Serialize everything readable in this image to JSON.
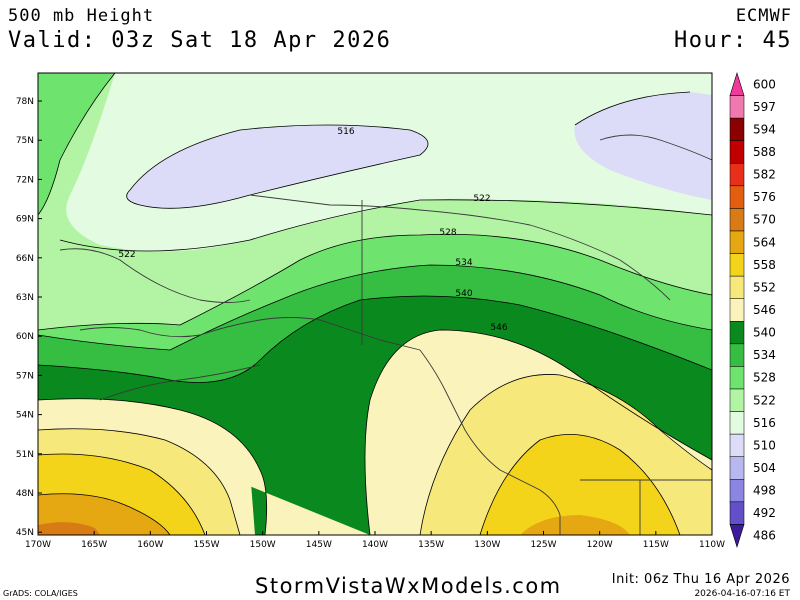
{
  "header": {
    "title": "500 mb Height",
    "valid": "Valid: 03z Sat 18 Apr 2026",
    "model": "ECMWF",
    "hour": "Hour: 45"
  },
  "footer": {
    "brand": "StormVistaWxModels.com",
    "credit": "GrADS: COLA/IGES",
    "init": "Init: 06z Thu 16 Apr 2026",
    "stamp": "2026-04-16-07:16 ET"
  },
  "map": {
    "lat_labels": [
      "78N",
      "75N",
      "72N",
      "69N",
      "66N",
      "63N",
      "60N",
      "57N",
      "54N",
      "51N",
      "48N",
      "45N"
    ],
    "lon_labels": [
      "170W",
      "165W",
      "160W",
      "155W",
      "150W",
      "145W",
      "140W",
      "135W",
      "130W",
      "125W",
      "120W",
      "115W",
      "110W"
    ],
    "contour_labels": [
      "516",
      "522",
      "522",
      "528",
      "534",
      "540",
      "546"
    ],
    "colorbar": [
      {
        "value": "600",
        "color": "#ee3a99"
      },
      {
        "value": "597",
        "color": "#f07aaf"
      },
      {
        "value": "594",
        "color": "#8b0000"
      },
      {
        "value": "588",
        "color": "#c00000"
      },
      {
        "value": "582",
        "color": "#e83018"
      },
      {
        "value": "576",
        "color": "#e45e10"
      },
      {
        "value": "570",
        "color": "#d97b14"
      },
      {
        "value": "564",
        "color": "#e6a812"
      },
      {
        "value": "558",
        "color": "#f4d41a"
      },
      {
        "value": "552",
        "color": "#f6e87a"
      },
      {
        "value": "546",
        "color": "#fbf3bc"
      },
      {
        "value": "540",
        "color": "#0a8a1e"
      },
      {
        "value": "534",
        "color": "#35be42"
      },
      {
        "value": "528",
        "color": "#6ee36e"
      },
      {
        "value": "522",
        "color": "#b3f4a4"
      },
      {
        "value": "516",
        "color": "#e3fbe0"
      },
      {
        "value": "510",
        "color": "#dcdcf8"
      },
      {
        "value": "504",
        "color": "#b8b8f0"
      },
      {
        "value": "498",
        "color": "#8c86e2"
      },
      {
        "value": "492",
        "color": "#6350c8"
      },
      {
        "value": "486",
        "color": "#3c1c9a"
      }
    ]
  }
}
